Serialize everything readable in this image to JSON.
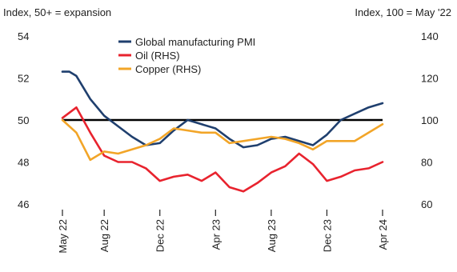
{
  "chart_data": {
    "type": "line",
    "left_axis_label": "Index, 50+ = expansion",
    "right_axis_label": "Index, 100 = May '22",
    "x_ticks": [
      "May 22",
      "Aug 22",
      "Dec 22",
      "Apr 23",
      "Aug 23",
      "Dec 23",
      "Apr 24"
    ],
    "x_tick_months": [
      0,
      3,
      7,
      11,
      15,
      19,
      23
    ],
    "y_left": {
      "ticks": [
        "54",
        "52",
        "50",
        "48",
        "46"
      ],
      "lim": [
        46,
        54
      ]
    },
    "y_right": {
      "ticks": [
        "140",
        "120",
        "100",
        "80",
        "60"
      ],
      "lim": [
        60,
        140
      ]
    },
    "reference_line": {
      "axis": "left",
      "value": 50
    },
    "series": [
      {
        "name": "Global manufacturing PMI",
        "axis": "left",
        "color": "#1f3f6e",
        "x": [
          0,
          0.5,
          1,
          2,
          3,
          4,
          5,
          6,
          7,
          8,
          9,
          10,
          11,
          12,
          13,
          14,
          15,
          16,
          17,
          18,
          19,
          20,
          21,
          22,
          23
        ],
        "values": [
          52.3,
          52.3,
          52.1,
          51.0,
          50.2,
          49.7,
          49.2,
          48.8,
          48.9,
          49.5,
          50.0,
          49.8,
          49.6,
          49.1,
          48.7,
          48.8,
          49.1,
          49.2,
          49.0,
          48.8,
          49.3,
          50.0,
          50.3,
          50.6,
          50.8
        ]
      },
      {
        "name": "Oil (RHS)",
        "axis": "right",
        "color": "#e8232e",
        "x": [
          0,
          1,
          2,
          3,
          4,
          5,
          6,
          7,
          8,
          9,
          10,
          11,
          12,
          13,
          14,
          15,
          16,
          17,
          18,
          19,
          20,
          21,
          22,
          23
        ],
        "values": [
          101,
          106,
          94,
          83,
          80,
          80,
          77,
          71,
          73,
          74,
          71,
          75,
          68,
          66,
          70,
          75,
          78,
          84,
          79,
          71,
          73,
          76,
          77,
          80
        ]
      },
      {
        "name": "Copper (RHS)",
        "axis": "right",
        "color": "#f2a528",
        "x": [
          0,
          1,
          2,
          3,
          4,
          5,
          6,
          7,
          8,
          9,
          10,
          11,
          12,
          13,
          14,
          15,
          16,
          17,
          18,
          19,
          20,
          21,
          22,
          23
        ],
        "values": [
          100,
          94,
          81,
          85,
          84,
          86,
          88,
          91,
          96,
          95,
          94,
          94,
          89,
          90,
          91,
          92,
          91,
          89,
          86,
          90,
          90,
          90,
          94,
          98
        ]
      }
    ]
  }
}
